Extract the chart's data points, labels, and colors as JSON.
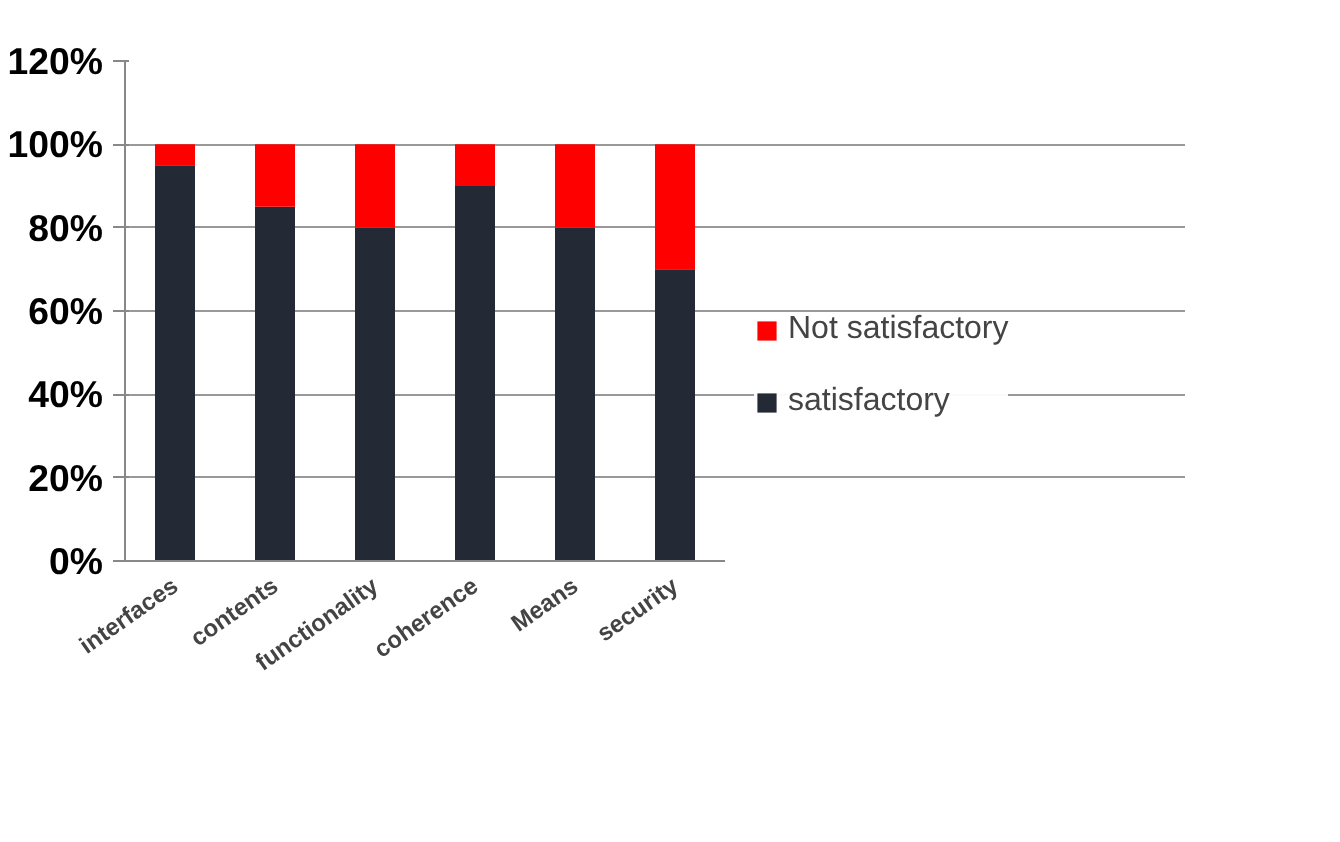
{
  "chart_data": {
    "type": "bar",
    "stacked": true,
    "categories": [
      "interfaces",
      "contents",
      "functionality",
      "coherence",
      "Means",
      "security"
    ],
    "series": [
      {
        "name": "satisfactory",
        "color": "#242a35",
        "values": [
          95,
          85,
          80,
          90,
          80,
          70
        ]
      },
      {
        "name": "Not satisfactory",
        "color": "#ff0000",
        "values": [
          5,
          15,
          20,
          10,
          20,
          30
        ]
      }
    ],
    "ylim": [
      0,
      120
    ],
    "yticks": [
      {
        "value": 0,
        "label": "0%"
      },
      {
        "value": 20,
        "label": "20%"
      },
      {
        "value": 40,
        "label": "40%"
      },
      {
        "value": 60,
        "label": "60%"
      },
      {
        "value": 80,
        "label": "80%"
      },
      {
        "value": 100,
        "label": "100%"
      },
      {
        "value": 120,
        "label": "120%"
      }
    ],
    "grid": "y",
    "legend": "right"
  }
}
